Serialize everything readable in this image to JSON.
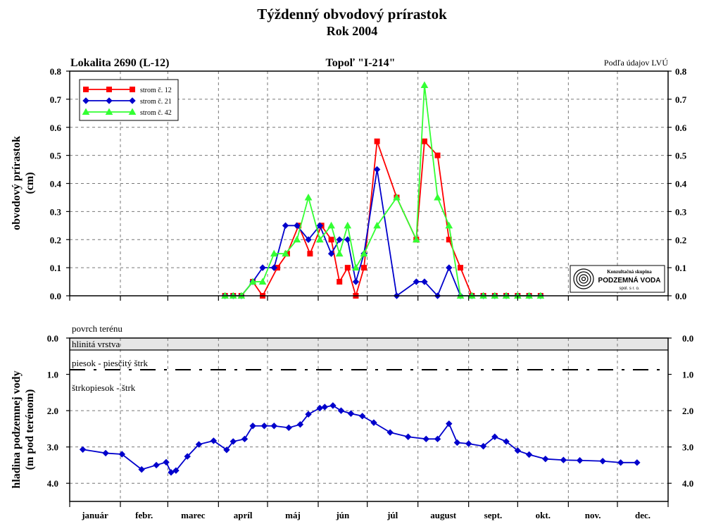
{
  "header": {
    "title": "Týždenný obvodový prírastok",
    "subtitle": "Rok 2004"
  },
  "panel_top": {
    "location": "Lokalita 2690 (L-12)",
    "tree": "Topoľ \"I-214\"",
    "source": "Podľa údajov LVÚ",
    "ylabel_line1": "obvodový prírastok",
    "ylabel_line2": "(cm)"
  },
  "logo": {
    "line1": "Konzultačná skupina",
    "line2": "PODZEMNÁ VODA",
    "line3": "spol. s r. o."
  },
  "panel_bottom": {
    "ylabel_line1": "hladina podzemnej vody",
    "ylabel_line2": "(m pod terénom)",
    "layer_surface": "povrch terénu",
    "layer_clay": "hlinitá vrstva",
    "layer_sand": "piesok - piesčitý štrk",
    "layer_gravel": "štrkopiesok - štrk"
  },
  "months": [
    "január",
    "febr.",
    "marec",
    "apríl",
    "máj",
    "jún",
    "júl",
    "august",
    "sept.",
    "okt.",
    "nov.",
    "dec."
  ],
  "colors": {
    "s12": "#ff0000",
    "s21": "#0000cc",
    "s42": "#33ff33",
    "gw": "#0000cc"
  },
  "chart_data": [
    {
      "type": "line",
      "x_unit": "day of year 2004",
      "ylim": [
        0,
        0.8
      ],
      "yticks": [
        "0.0",
        "0.1",
        "0.2",
        "0.3",
        "0.4",
        "0.5",
        "0.6",
        "0.7",
        "0.8"
      ],
      "grid": true,
      "legend": "top-left",
      "series": [
        {
          "name": "strom č. 12",
          "marker": "square",
          "x": [
            95,
            100,
            105,
            112,
            118,
            127,
            133,
            140,
            147,
            154,
            160,
            165,
            170,
            175,
            180,
            188,
            200,
            212,
            217,
            225,
            232,
            239,
            246,
            253,
            260,
            267,
            274,
            281,
            288
          ],
          "y": [
            0,
            0,
            0,
            0.05,
            0,
            0.1,
            0.15,
            0.25,
            0.15,
            0.25,
            0.2,
            0.05,
            0.1,
            0,
            0.1,
            0.55,
            0.35,
            0.2,
            0.55,
            0.5,
            0.2,
            0.1,
            0,
            0,
            0,
            0,
            0,
            0,
            0
          ]
        },
        {
          "name": "strom č. 21",
          "marker": "diamond",
          "x": [
            95,
            100,
            105,
            112,
            118,
            125,
            132,
            139,
            146,
            153,
            160,
            165,
            170,
            175,
            180,
            188,
            200,
            212,
            217,
            225,
            232,
            239,
            246,
            253,
            260,
            267,
            274,
            281,
            288
          ],
          "y": [
            0,
            0,
            0,
            0.05,
            0.1,
            0.1,
            0.25,
            0.25,
            0.2,
            0.25,
            0.15,
            0.2,
            0.2,
            0.05,
            0.15,
            0.45,
            0,
            0.05,
            0.05,
            0,
            0.1,
            0,
            0,
            0,
            0,
            0,
            0,
            0,
            0
          ]
        },
        {
          "name": "strom č. 42",
          "marker": "triangle",
          "x": [
            95,
            100,
            105,
            112,
            118,
            125,
            132,
            139,
            146,
            153,
            160,
            165,
            170,
            175,
            180,
            188,
            200,
            212,
            217,
            225,
            232,
            239,
            246,
            253,
            260,
            267,
            274,
            281,
            288
          ],
          "y": [
            0,
            0,
            0,
            0.05,
            0.05,
            0.15,
            0.15,
            0.2,
            0.35,
            0.2,
            0.25,
            0.15,
            0.25,
            0.1,
            0.15,
            0.25,
            0.35,
            0.2,
            0.75,
            0.35,
            0.25,
            0,
            0,
            0,
            0,
            0,
            0,
            0,
            0
          ]
        }
      ]
    },
    {
      "type": "line",
      "x_unit": "day of year 2004",
      "ylim": [
        0,
        4.5
      ],
      "y_inverted": true,
      "yticks": [
        "0.0",
        "1.0",
        "2.0",
        "3.0",
        "4.0"
      ],
      "series": [
        {
          "marker": "diamond",
          "x": [
            8,
            22,
            32,
            44,
            53,
            59,
            62,
            65,
            72,
            79,
            88,
            96,
            100,
            107,
            112,
            119,
            125,
            134,
            141,
            146,
            153,
            156,
            161,
            166,
            172,
            179,
            186,
            196,
            207,
            218,
            225,
            232,
            237,
            244,
            253,
            260,
            267,
            274,
            281,
            291,
            302,
            312,
            326,
            337,
            347
          ],
          "y": [
            3.07,
            3.17,
            3.2,
            3.62,
            3.5,
            3.42,
            3.7,
            3.65,
            3.26,
            2.93,
            2.83,
            3.08,
            2.85,
            2.78,
            2.42,
            2.42,
            2.42,
            2.47,
            2.38,
            2.1,
            1.93,
            1.9,
            1.86,
            2.0,
            2.08,
            2.15,
            2.33,
            2.6,
            2.72,
            2.78,
            2.78,
            2.36,
            2.88,
            2.91,
            2.98,
            2.72,
            2.85,
            3.1,
            3.21,
            3.33,
            3.36,
            3.37,
            3.39,
            3.43,
            3.43
          ]
        }
      ]
    }
  ]
}
